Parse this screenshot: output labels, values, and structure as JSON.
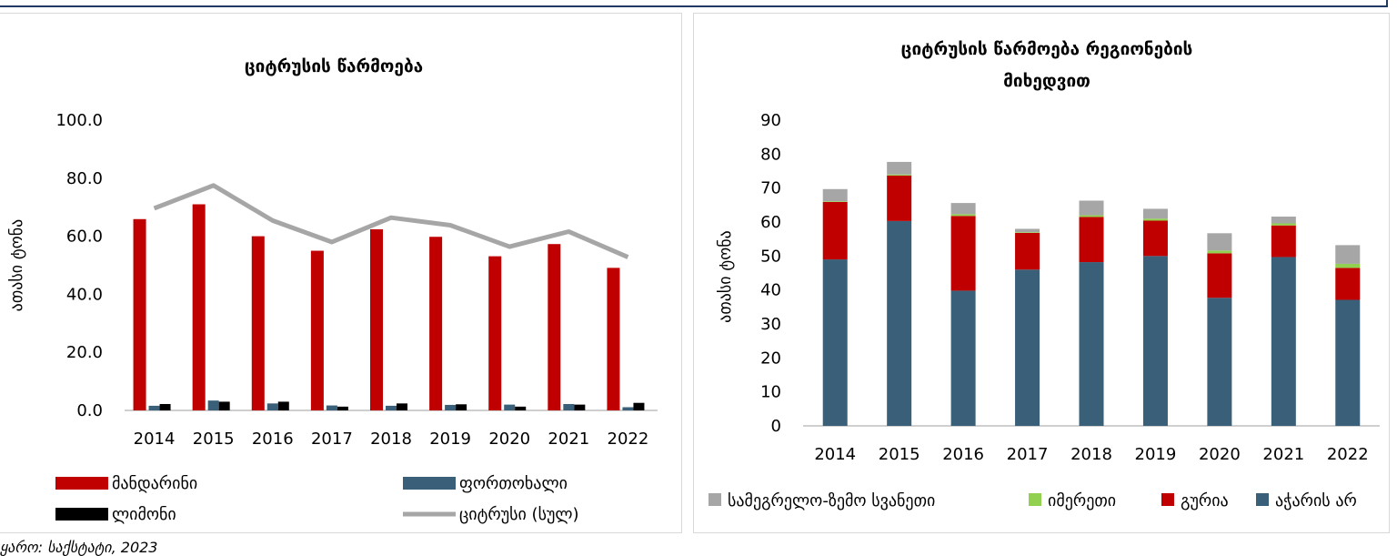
{
  "source_note": "ყარო: საქსტატი, 2023",
  "colors": {
    "frame": "#1f3864",
    "mandarin": "#c00000",
    "orange": "#3a5f78",
    "lemon": "#000000",
    "citrus_total": "#a6a6a6",
    "samegrelo": "#a6a6a6",
    "imereti": "#92d050",
    "guria": "#c00000",
    "adjara": "#3a5f78"
  },
  "chart_data": [
    {
      "type": "bar",
      "title": "ციტრუსის წარმოება",
      "ylabel": "ათასი ტონა",
      "xlabel": "",
      "ylim": [
        0,
        100
      ],
      "yticks": [
        "0.0",
        "20.0",
        "40.0",
        "60.0",
        "80.0",
        "100.0"
      ],
      "categories": [
        "2014",
        "2015",
        "2016",
        "2017",
        "2018",
        "2019",
        "2020",
        "2021",
        "2022"
      ],
      "series": [
        {
          "name": "მანდარინი",
          "type": "bar",
          "values": [
            65.9,
            71.0,
            60.0,
            55.0,
            62.4,
            59.8,
            53.1,
            57.3,
            49.1
          ]
        },
        {
          "name": "ფორთოხალი",
          "type": "bar",
          "values": [
            1.6,
            3.4,
            2.4,
            1.7,
            1.6,
            1.9,
            2.0,
            2.2,
            1.1
          ]
        },
        {
          "name": "ლიმონი",
          "type": "bar",
          "values": [
            2.2,
            3.0,
            3.0,
            1.3,
            2.4,
            2.1,
            1.3,
            2.0,
            2.6
          ]
        },
        {
          "name": "ციტრუსი (სულ)",
          "type": "line",
          "values": [
            69.6,
            77.5,
            65.4,
            58.0,
            66.4,
            63.8,
            56.4,
            61.6,
            52.8
          ]
        }
      ],
      "legend_position": "bottom",
      "grid": false
    },
    {
      "type": "bar",
      "stacked": true,
      "title": "ციტრუსის წარმოება რეგიონების მიხედვით",
      "title_lines": [
        "ციტრუსის წარმოება რეგიონების",
        "მიხედვით"
      ],
      "ylabel": "ათასი ტონა",
      "xlabel": "",
      "ylim": [
        0,
        90
      ],
      "yticks": [
        "0",
        "10",
        "20",
        "30",
        "40",
        "50",
        "60",
        "70",
        "80",
        "90"
      ],
      "categories": [
        "2014",
        "2015",
        "2016",
        "2017",
        "2018",
        "2019",
        "2020",
        "2021",
        "2022"
      ],
      "series": [
        {
          "name": "აჭარის არ",
          "values": [
            49.0,
            60.3,
            39.8,
            46.0,
            48.2,
            50.0,
            37.7,
            49.7,
            37.1
          ]
        },
        {
          "name": "გურია",
          "values": [
            16.9,
            13.4,
            22.0,
            10.8,
            13.3,
            10.4,
            13.1,
            9.3,
            9.4
          ]
        },
        {
          "name": "იმერეთი",
          "values": [
            0.2,
            0.3,
            0.5,
            0.2,
            0.5,
            0.6,
            0.8,
            0.6,
            1.2
          ]
        },
        {
          "name": "სამეგრელო-ზემო სვანეთი",
          "values": [
            3.6,
            3.7,
            3.3,
            1.0,
            4.3,
            2.9,
            5.1,
            2.0,
            5.5
          ]
        }
      ],
      "legend_position": "bottom",
      "grid": false
    }
  ]
}
